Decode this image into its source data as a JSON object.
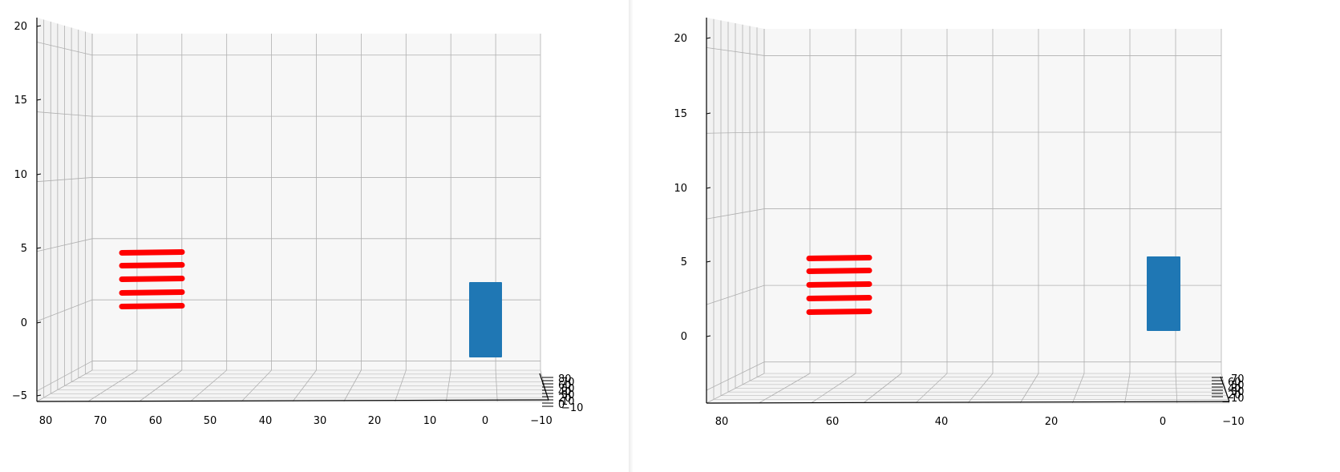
{
  "chart_data": [
    {
      "type": "scatter",
      "projection": "3d",
      "title": "",
      "xlabel": "",
      "ylabel": "",
      "zlabel": "",
      "grid": true,
      "colors": {
        "red_strokes": "#ff0000",
        "blue_box": "#1f77b4",
        "pane": "#f7f7f7",
        "grid": "#b0b0b0"
      },
      "x_ticks": [
        "80",
        "70",
        "60",
        "50",
        "40",
        "30",
        "20",
        "10",
        "0",
        "−10"
      ],
      "y_ticks": [
        "−10",
        "0",
        "10",
        "20",
        "30",
        "40",
        "50",
        "60",
        "70",
        "80"
      ],
      "z_ticks": [
        "−5",
        "0",
        "5",
        "10",
        "15",
        "20"
      ],
      "xlim": [
        -10,
        82
      ],
      "zlim": [
        -5,
        20
      ],
      "series": [
        {
          "kind": "strokes",
          "z": [
            1,
            2,
            3,
            4,
            5
          ],
          "x_range": [
            55,
            67
          ]
        },
        {
          "kind": "box",
          "x_range": [
            -3,
            3
          ],
          "z_range": [
            -2.5,
            3
          ]
        }
      ]
    },
    {
      "type": "scatter",
      "projection": "3d",
      "title": "",
      "xlabel": "",
      "ylabel": "",
      "zlabel": "",
      "grid": true,
      "colors": {
        "red_strokes": "#ff0000",
        "blue_box": "#1f77b4",
        "pane": "#f7f7f7",
        "grid": "#b0b0b0"
      },
      "x_ticks": [
        "80",
        "60",
        "40",
        "20",
        "0",
        "−10"
      ],
      "y_ticks": [
        "10",
        "20",
        "30",
        "40",
        "50",
        "60",
        "70"
      ],
      "z_ticks": [
        "0",
        "5",
        "10",
        "15",
        "20"
      ],
      "xlim": [
        -10,
        82
      ],
      "zlim": [
        -2,
        20
      ],
      "series": [
        {
          "kind": "strokes",
          "z": [
            1.5,
            2.5,
            3.5,
            4.5,
            5.5
          ],
          "x_range": [
            55,
            67
          ]
        },
        {
          "kind": "box",
          "x_range": [
            -3,
            3
          ],
          "z_range": [
            0,
            5
          ]
        }
      ]
    }
  ]
}
